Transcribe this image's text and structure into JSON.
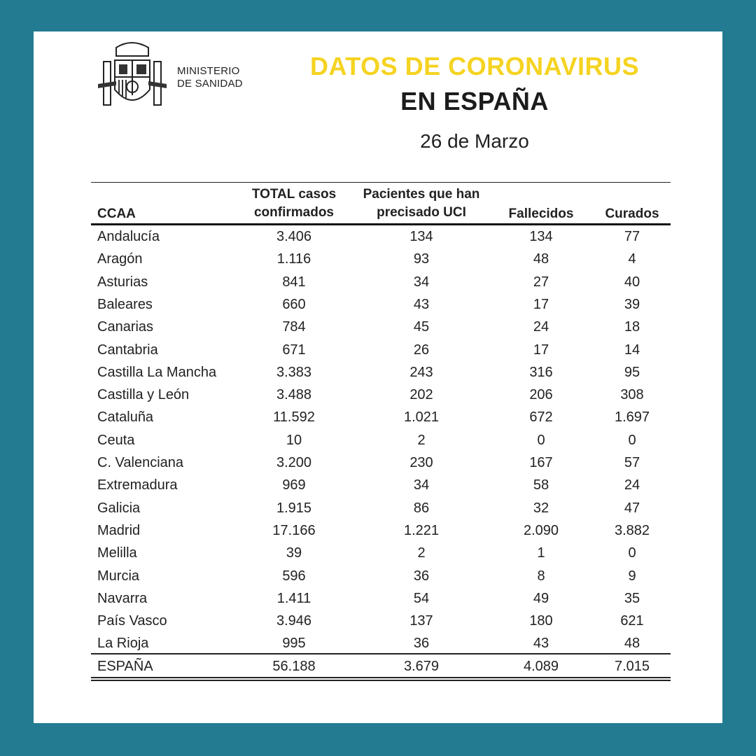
{
  "header": {
    "logo_text_line1": "MINISTERIO",
    "logo_text_line2": "DE SANIDAD",
    "title_line1": "DATOS DE CORONAVIRUS",
    "title_line2": "EN ESPAÑA",
    "date": "26 de Marzo"
  },
  "colors": {
    "border": "#237b91",
    "title_accent": "#f5d321"
  },
  "table": {
    "columns": [
      "CCAA",
      "TOTAL casos confirmados",
      "Pacientes que han precisado UCI",
      "Fallecidos",
      "Curados"
    ],
    "header": {
      "c0": "CCAA",
      "c1a": "TOTAL casos",
      "c1b": "confirmados",
      "c2a": "Pacientes que han",
      "c2b": "precisado UCI",
      "c3": "Fallecidos",
      "c4": "Curados"
    },
    "rows": [
      [
        "Andalucía",
        "3.406",
        "134",
        "134",
        "77"
      ],
      [
        "Aragón",
        "1.116",
        "93",
        "48",
        "4"
      ],
      [
        "Asturias",
        "841",
        "34",
        "27",
        "40"
      ],
      [
        "Baleares",
        "660",
        "43",
        "17",
        "39"
      ],
      [
        "Canarias",
        "784",
        "45",
        "24",
        "18"
      ],
      [
        "Cantabria",
        "671",
        "26",
        "17",
        "14"
      ],
      [
        "Castilla La Mancha",
        "3.383",
        "243",
        "316",
        "95"
      ],
      [
        "Castilla y León",
        "3.488",
        "202",
        "206",
        "308"
      ],
      [
        "Cataluña",
        "11.592",
        "1.021",
        "672",
        "1.697"
      ],
      [
        "Ceuta",
        "10",
        "2",
        "0",
        "0"
      ],
      [
        "C. Valenciana",
        "3.200",
        "230",
        "167",
        "57"
      ],
      [
        "Extremadura",
        "969",
        "34",
        "58",
        "24"
      ],
      [
        "Galicia",
        "1.915",
        "86",
        "32",
        "47"
      ],
      [
        "Madrid",
        "17.166",
        "1.221",
        "2.090",
        "3.882"
      ],
      [
        "Melilla",
        "39",
        "2",
        "1",
        "0"
      ],
      [
        "Murcia",
        "596",
        "36",
        "8",
        "9"
      ],
      [
        "Navarra",
        "1.411",
        "54",
        "49",
        "35"
      ],
      [
        "País Vasco",
        "3.946",
        "137",
        "180",
        "621"
      ],
      [
        "La Rioja",
        "995",
        "36",
        "43",
        "48"
      ]
    ],
    "total": [
      "ESPAÑA",
      "56.188",
      "3.679",
      "4.089",
      "7.015"
    ]
  }
}
